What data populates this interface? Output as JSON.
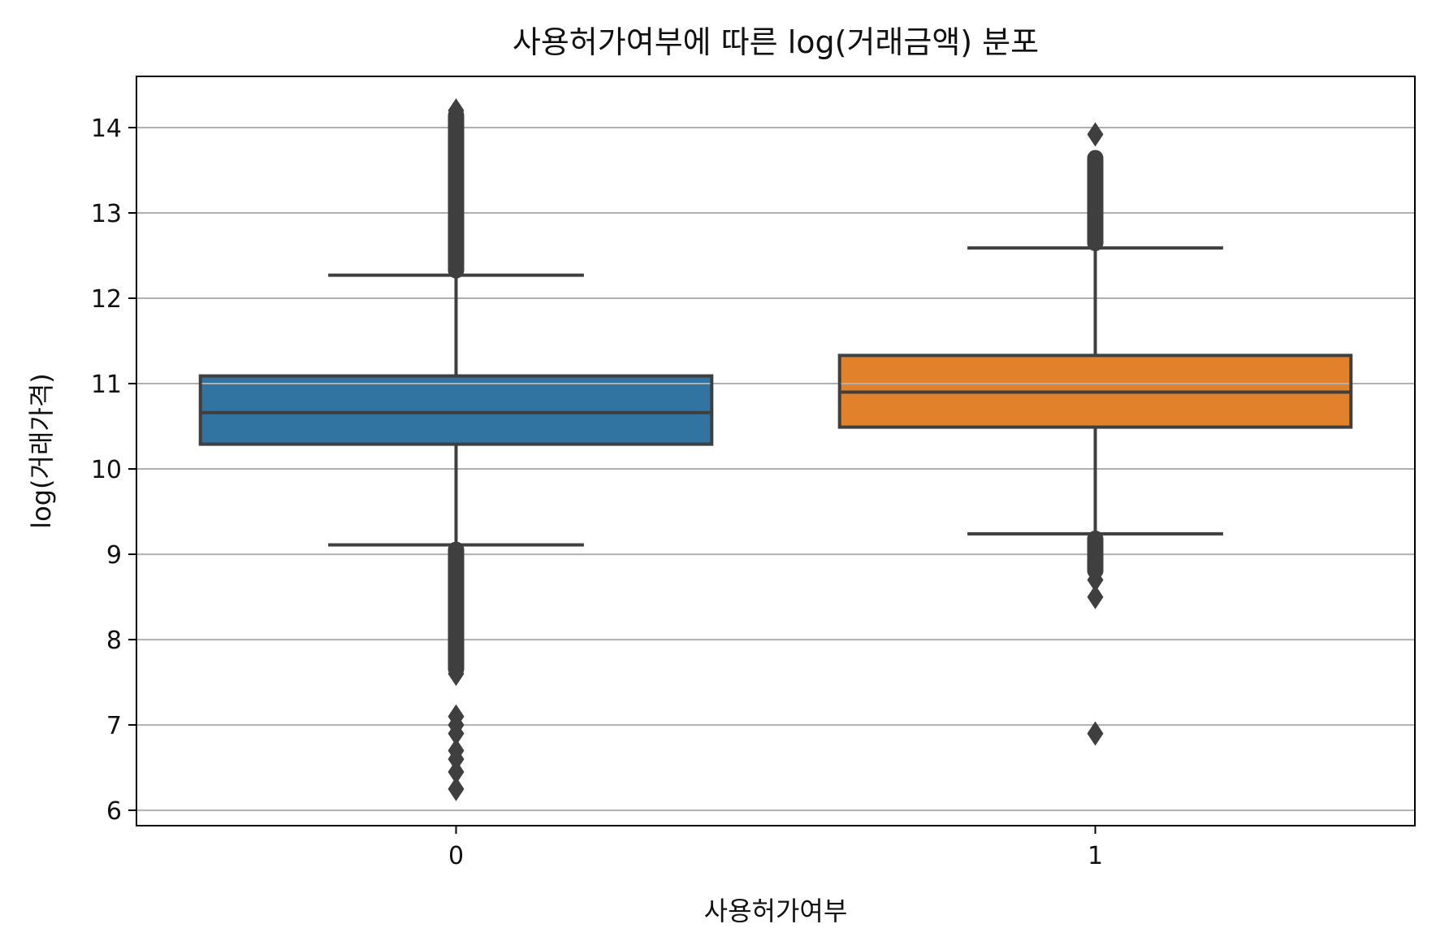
{
  "chart_data": {
    "type": "box",
    "title": "사용허가여부에 따른 log(거래금액) 분포",
    "xlabel": "사용허가여부",
    "ylabel": "log(거래가격)",
    "categories": [
      "0",
      "1"
    ],
    "ylim": [
      5.82,
      14.6
    ],
    "yticks": [
      6,
      7,
      8,
      9,
      10,
      11,
      12,
      13,
      14
    ],
    "grid": {
      "y": true,
      "x": false
    },
    "boxes": [
      {
        "category": "0",
        "color": "#3274a1",
        "whisker_low": 9.11,
        "q1": 10.29,
        "median": 10.66,
        "q3": 11.09,
        "whisker_high": 12.27,
        "upper_outlier_band": [
          12.27,
          14.2
        ],
        "lower_outlier_band": [
          7.6,
          9.11
        ],
        "outliers": [
          14.2,
          7.8,
          7.6,
          7.1,
          7.0,
          6.9,
          6.7,
          6.6,
          6.45,
          6.25
        ]
      },
      {
        "category": "1",
        "color": "#e1812c",
        "whisker_low": 9.24,
        "q1": 10.49,
        "median": 10.9,
        "q3": 11.33,
        "whisker_high": 12.59,
        "upper_outlier_band": [
          12.59,
          13.7
        ],
        "lower_outlier_band": [
          8.75,
          9.24
        ],
        "outliers": [
          13.92,
          8.7,
          8.5,
          6.9
        ]
      }
    ]
  }
}
